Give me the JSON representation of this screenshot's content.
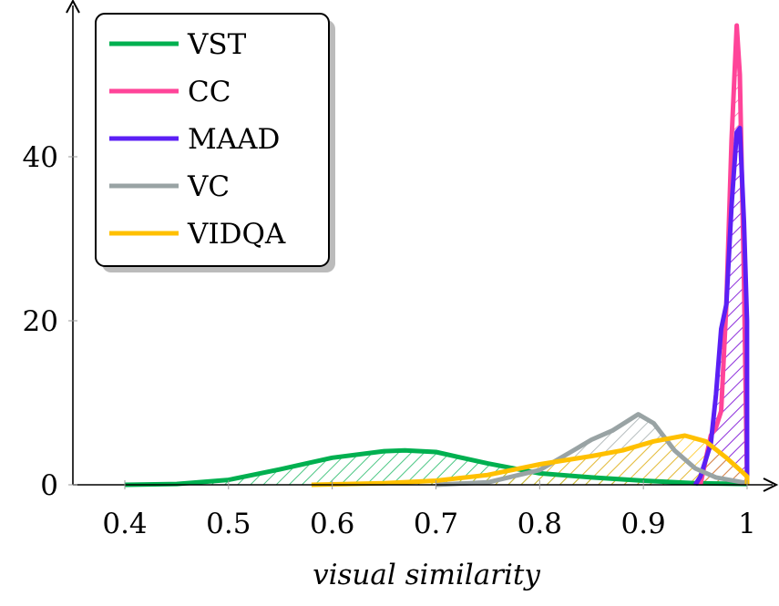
{
  "chart_data": {
    "type": "area",
    "title": "",
    "xlabel": "visual similarity",
    "ylabel": "",
    "xlim": [
      0.35,
      1.05
    ],
    "ylim": [
      0,
      58
    ],
    "xticks": [
      "0.4",
      "0.5",
      "0.6",
      "0.7",
      "0.8",
      "0.9",
      "1"
    ],
    "yticks": [
      "0",
      "20",
      "40"
    ],
    "grid": false,
    "legend_placement": "top-left",
    "series": [
      {
        "name": "VST",
        "color": "#00b050",
        "x": [
          0.4,
          0.45,
          0.5,
          0.55,
          0.6,
          0.65,
          0.67,
          0.7,
          0.75,
          0.8,
          0.85,
          0.9,
          0.95,
          1.0
        ],
        "y": [
          0,
          0.1,
          0.6,
          1.9,
          3.3,
          4.1,
          4.2,
          4.0,
          2.6,
          1.4,
          0.9,
          0.5,
          0.2,
          0.1
        ]
      },
      {
        "name": "CC",
        "color": "#ff4499",
        "x": [
          0.955,
          0.96,
          0.965,
          0.97,
          0.975,
          0.98,
          0.985,
          0.99,
          0.993,
          0.997,
          1.0
        ],
        "y": [
          0,
          3,
          6,
          7,
          9,
          22,
          42,
          56,
          50,
          25,
          0
        ]
      },
      {
        "name": "MAAD",
        "color": "#5b1ff5",
        "x": [
          0.95,
          0.955,
          0.96,
          0.965,
          0.97,
          0.975,
          0.98,
          0.985,
          0.99,
          0.993,
          0.997,
          0.9999,
          1.0
        ],
        "y": [
          0,
          1,
          3,
          5,
          11,
          19,
          22,
          34,
          43,
          43.5,
          32,
          20,
          0
        ]
      },
      {
        "name": "VC",
        "color": "#99a3a4",
        "x": [
          0.7,
          0.75,
          0.8,
          0.83,
          0.85,
          0.87,
          0.895,
          0.91,
          0.93,
          0.95,
          0.97,
          1.0
        ],
        "y": [
          0,
          0.3,
          1.8,
          4.0,
          5.5,
          6.6,
          8.6,
          7.5,
          4.2,
          2.0,
          0.9,
          0.2
        ]
      },
      {
        "name": "VIDQA",
        "color": "#ffc000",
        "x": [
          0.58,
          0.65,
          0.7,
          0.75,
          0.8,
          0.85,
          0.88,
          0.91,
          0.94,
          0.96,
          0.98,
          0.995,
          1.0,
          1.0
        ],
        "y": [
          0,
          0.2,
          0.5,
          1.2,
          2.5,
          3.5,
          4.2,
          5.3,
          6.0,
          5.3,
          3.3,
          1.6,
          1.0,
          0
        ]
      }
    ]
  }
}
